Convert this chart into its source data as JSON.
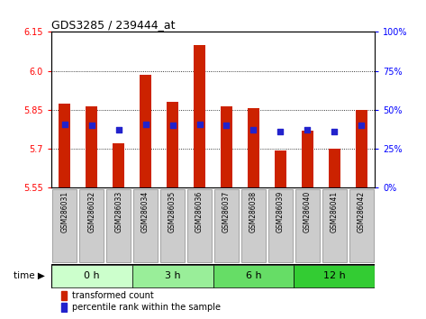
{
  "title": "GDS3285 / 239444_at",
  "samples": [
    "GSM286031",
    "GSM286032",
    "GSM286033",
    "GSM286034",
    "GSM286035",
    "GSM286036",
    "GSM286037",
    "GSM286038",
    "GSM286039",
    "GSM286040",
    "GSM286041",
    "GSM286042"
  ],
  "bar_values": [
    5.875,
    5.865,
    5.72,
    5.985,
    5.88,
    6.1,
    5.865,
    5.855,
    5.695,
    5.77,
    5.7,
    5.85
  ],
  "blue_values": [
    5.795,
    5.79,
    5.775,
    5.795,
    5.79,
    5.795,
    5.79,
    5.775,
    5.765,
    5.775,
    5.765,
    5.79
  ],
  "y_min": 5.55,
  "y_max": 6.15,
  "y_ticks": [
    5.55,
    5.7,
    5.85,
    6.0,
    6.15
  ],
  "right_ticks": [
    0,
    25,
    50,
    75,
    100
  ],
  "bar_color": "#cc2200",
  "blue_color": "#2222cc",
  "groups_info": [
    {
      "label": "0 h",
      "start": 0,
      "end": 2,
      "color": "#ccffcc"
    },
    {
      "label": "3 h",
      "start": 3,
      "end": 5,
      "color": "#99ee99"
    },
    {
      "label": "6 h",
      "start": 6,
      "end": 8,
      "color": "#66dd66"
    },
    {
      "label": "12 h",
      "start": 9,
      "end": 11,
      "color": "#33cc33"
    }
  ],
  "tick_label_bg": "#cccccc"
}
